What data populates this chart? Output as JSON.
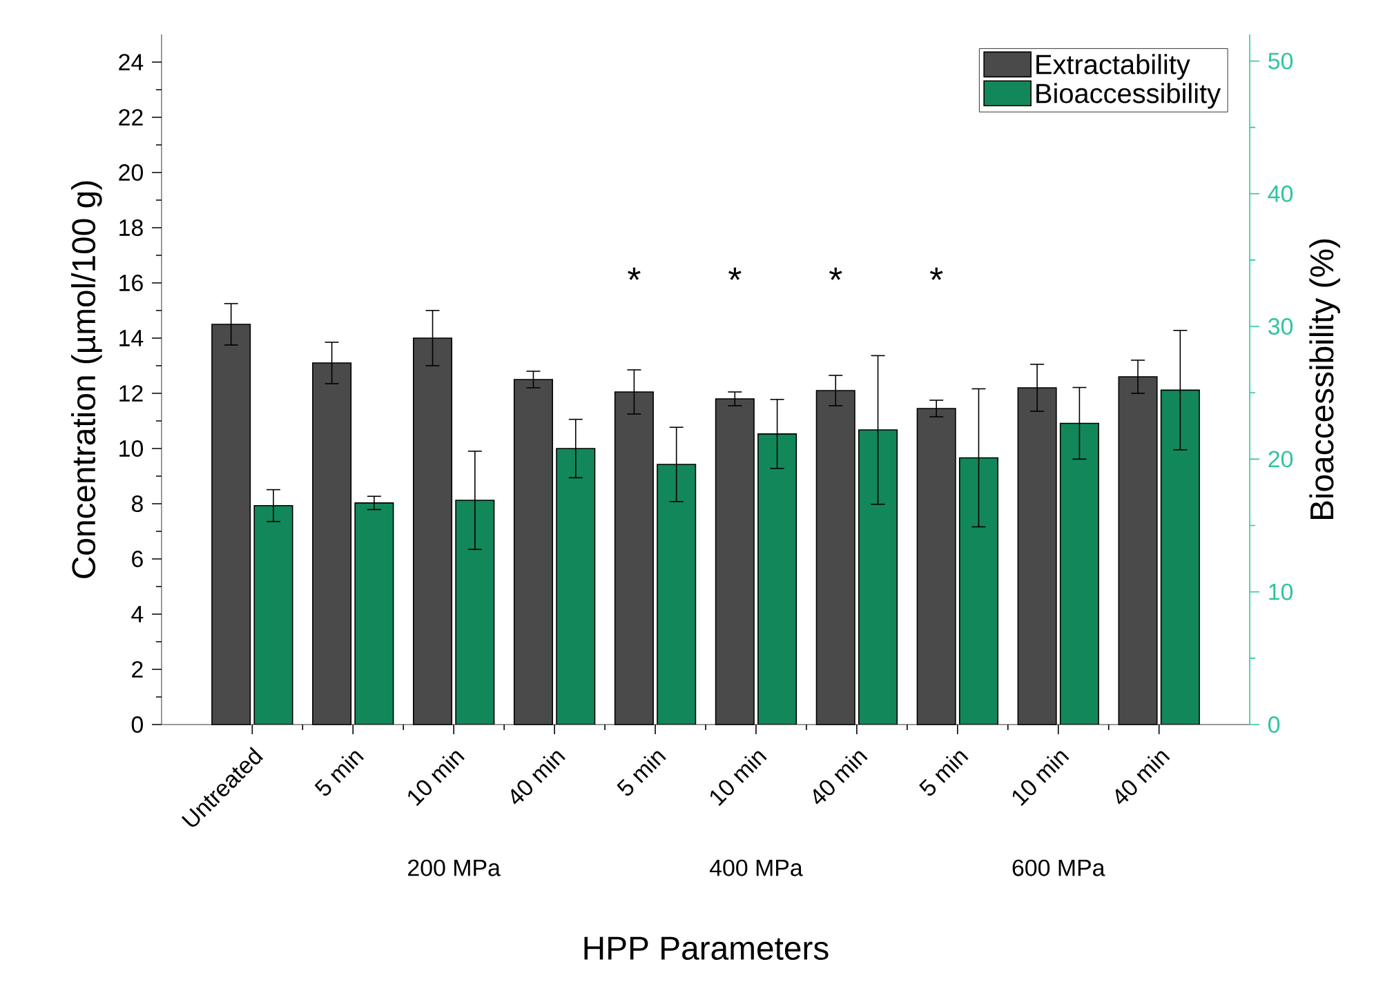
{
  "chart_data": {
    "type": "bar",
    "categories": [
      "Untreated",
      "5 min",
      "10 min",
      "40 min",
      "5 min",
      "10 min",
      "40 min",
      "5 min",
      "10 min",
      "40 min"
    ],
    "xlabel": "HPP Parameters",
    "ylabel": "Concentration (µmol/100 g)",
    "y2label": "Bioaccessibility (%)",
    "ylim": [
      0,
      25
    ],
    "yticks": [
      0,
      2,
      4,
      6,
      8,
      10,
      12,
      14,
      16,
      18,
      20,
      22,
      24
    ],
    "y2lim": [
      0,
      52
    ],
    "y2ticks": [
      0,
      10,
      20,
      30,
      40,
      50
    ],
    "legend": "top right",
    "series": [
      {
        "name": "Extractability",
        "color": "#4a4a4a",
        "values": [
          14.5,
          13.1,
          14.0,
          12.5,
          12.05,
          11.8,
          12.1,
          11.45,
          12.2,
          12.6
        ],
        "errors": [
          0.75,
          0.75,
          1.0,
          0.3,
          0.8,
          0.25,
          0.55,
          0.3,
          0.85,
          0.6
        ]
      },
      {
        "name": "Bioaccessibility",
        "color": "#12875a",
        "axis": "y2",
        "values": [
          16.5,
          16.7,
          16.9,
          20.8,
          19.6,
          21.9,
          22.2,
          20.1,
          22.7,
          25.2
        ],
        "errors": [
          1.2,
          0.5,
          3.7,
          2.2,
          2.8,
          2.6,
          5.6,
          5.2,
          2.7,
          4.5
        ]
      }
    ],
    "annotations": [
      "*",
      "*",
      "*",
      "*",
      "200 MPa",
      "400 MPa",
      "600 MPa"
    ]
  }
}
